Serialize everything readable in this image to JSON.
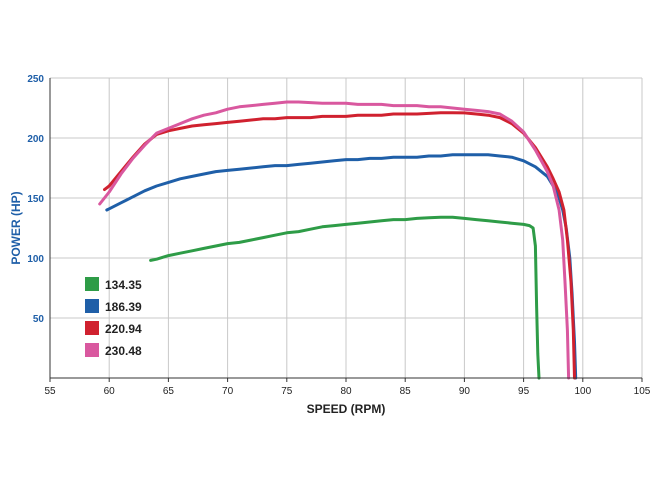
{
  "chart_data": {
    "type": "line",
    "title": "",
    "xlabel": "SPEED (RPM)",
    "ylabel": "POWER (HP)",
    "xlim": [
      55,
      105
    ],
    "ylim": [
      0,
      250
    ],
    "xticks": [
      "55",
      "60",
      "65",
      "70",
      "75",
      "80",
      "85",
      "90",
      "95",
      "100",
      "105"
    ],
    "yticks": [
      "50",
      "100",
      "150",
      "200",
      "250"
    ],
    "grid": true,
    "legend_position": "bottom-left",
    "colors": {
      "ylabel": "#1f5fa8",
      "xlabel": "#222222",
      "grid": "#c8c8c8"
    },
    "series": [
      {
        "name": "134.35",
        "color": "#2e9c47",
        "x": [
          63.5,
          64,
          65,
          66,
          67,
          68,
          69,
          70,
          71,
          72,
          73,
          74,
          75,
          76,
          77,
          78,
          79,
          80,
          81,
          82,
          83,
          84,
          85,
          86,
          87,
          88,
          89,
          90,
          91,
          92,
          93,
          94,
          95,
          95.5,
          95.8,
          96.0,
          96.1,
          96.2,
          96.3
        ],
        "y": [
          98,
          99,
          102,
          104,
          106,
          108,
          110,
          112,
          113,
          115,
          117,
          119,
          121,
          122,
          124,
          126,
          127,
          128,
          129,
          130,
          131,
          132,
          132,
          133,
          133.5,
          134,
          134,
          133,
          132,
          131,
          130,
          129,
          128,
          127,
          125,
          110,
          60,
          20,
          0
        ]
      },
      {
        "name": "186.39",
        "color": "#1f5fa8",
        "x": [
          59.8,
          60,
          61,
          62,
          63,
          64,
          65,
          66,
          67,
          68,
          69,
          70,
          71,
          72,
          73,
          74,
          75,
          76,
          77,
          78,
          79,
          80,
          81,
          82,
          83,
          84,
          85,
          86,
          87,
          88,
          89,
          90,
          91,
          92,
          93,
          94,
          95,
          96,
          97,
          97.5,
          98,
          98.3,
          98.6,
          98.9,
          99.1,
          99.3,
          99.4
        ],
        "y": [
          140,
          141,
          146,
          151,
          156,
          160,
          163,
          166,
          168,
          170,
          172,
          173,
          174,
          175,
          176,
          177,
          177,
          178,
          179,
          180,
          181,
          182,
          182,
          183,
          183,
          184,
          184,
          184,
          185,
          185,
          186,
          186,
          186,
          186,
          185,
          184,
          181,
          176,
          168,
          160,
          150,
          140,
          125,
          100,
          70,
          30,
          0
        ]
      },
      {
        "name": "220.94",
        "color": "#d0212f",
        "x": [
          59.6,
          60,
          61,
          62,
          63,
          64,
          65,
          66,
          67,
          68,
          69,
          70,
          71,
          72,
          73,
          74,
          75,
          76,
          77,
          78,
          79,
          80,
          81,
          82,
          83,
          84,
          85,
          86,
          87,
          88,
          89,
          90,
          91,
          92,
          93,
          94,
          95,
          96,
          97,
          97.5,
          98,
          98.4,
          98.7,
          99.0,
          99.2,
          99.3
        ],
        "y": [
          157,
          160,
          172,
          184,
          195,
          203,
          206,
          208,
          210,
          211,
          212,
          213,
          214,
          215,
          216,
          216,
          217,
          217,
          217,
          218,
          218,
          218,
          219,
          219,
          219,
          220,
          220,
          220,
          220.5,
          221,
          221,
          220.9,
          220,
          219,
          217,
          212,
          204,
          192,
          176,
          166,
          155,
          140,
          115,
          80,
          40,
          0
        ]
      },
      {
        "name": "230.48",
        "color": "#d9589f",
        "x": [
          59.2,
          60,
          61,
          62,
          63,
          64,
          65,
          66,
          67,
          68,
          69,
          70,
          71,
          72,
          73,
          74,
          75,
          76,
          77,
          78,
          79,
          80,
          81,
          82,
          83,
          84,
          85,
          86,
          87,
          88,
          89,
          90,
          91,
          92,
          93,
          94,
          95,
          96,
          97,
          97.5,
          98,
          98.3,
          98.5,
          98.7,
          98.8
        ],
        "y": [
          145,
          155,
          170,
          183,
          194,
          204,
          208,
          212,
          216,
          219,
          221,
          224,
          226,
          227,
          228,
          229,
          230,
          230,
          229.5,
          229,
          229,
          229,
          228,
          228,
          228,
          227,
          227,
          227,
          226,
          226,
          225,
          224,
          223,
          222,
          220,
          214,
          205,
          190,
          172,
          160,
          140,
          115,
          80,
          40,
          0
        ]
      }
    ]
  }
}
